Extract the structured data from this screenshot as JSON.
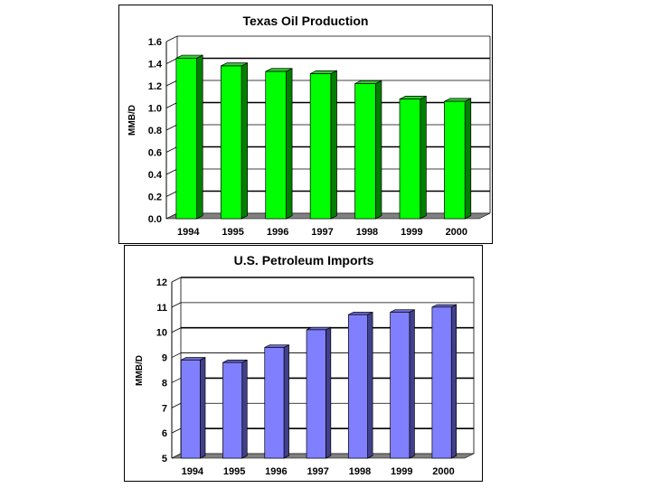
{
  "chart_data": [
    {
      "type": "bar",
      "title": "Texas Oil Production",
      "ylabel": "MMB/D",
      "xlabel": "",
      "categories": [
        "1994",
        "1995",
        "1996",
        "1997",
        "1998",
        "1999",
        "2000"
      ],
      "values": [
        1.45,
        1.38,
        1.33,
        1.31,
        1.22,
        1.08,
        1.06
      ],
      "ylim": [
        0,
        1.6
      ],
      "yticks": [
        "0.0",
        "0.2",
        "0.4",
        "0.6",
        "0.8",
        "1.0",
        "1.2",
        "1.4",
        "1.6"
      ],
      "grid": true,
      "three_d": true,
      "colors": {
        "bar_front": "#00ff00",
        "bar_side": "#008000",
        "bar_top": "#2ecc2e",
        "floor": "#808080"
      }
    },
    {
      "type": "bar",
      "title": "U.S. Petroleum Imports",
      "ylabel": "MMB/D",
      "xlabel": "",
      "categories": [
        "1994",
        "1995",
        "1996",
        "1997",
        "1998",
        "1999",
        "2000"
      ],
      "values": [
        8.9,
        8.8,
        9.4,
        10.1,
        10.7,
        10.8,
        11.0
      ],
      "ylim": [
        5,
        12
      ],
      "yticks": [
        "5",
        "6",
        "7",
        "8",
        "9",
        "10",
        "11",
        "12"
      ],
      "grid": true,
      "three_d": true,
      "colors": {
        "bar_front": "#8080ff",
        "bar_side": "#40408c",
        "bar_top": "#6a6ad0",
        "floor": "#808080"
      }
    }
  ]
}
